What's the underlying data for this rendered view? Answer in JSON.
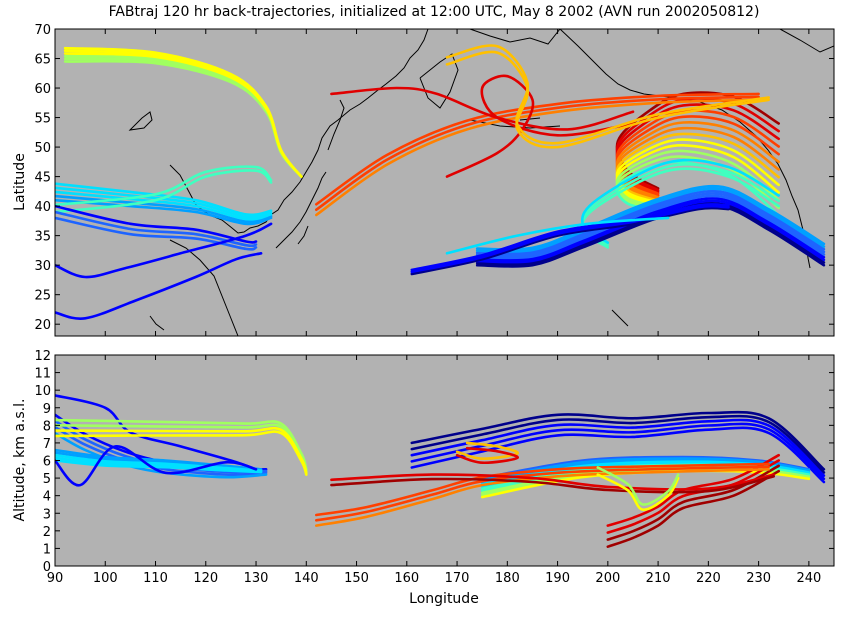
{
  "title": "FABtraj 120 hr back-trajectories, initialized at 12:00 UTC, May 8 2002 (AVN run 2002050812)",
  "colors": {
    "panel_bg": "#b2b2b2",
    "coast": "#000000",
    "traj_palette": [
      "#00008b",
      "#0000ff",
      "#1e64ff",
      "#00a0ff",
      "#00e0ff",
      "#40ffc0",
      "#a0ff60",
      "#ffff00",
      "#ffc000",
      "#ff8000",
      "#ff4000",
      "#e00000",
      "#a00000"
    ]
  },
  "chart_data": [
    {
      "type": "line",
      "name": "map",
      "xlim": [
        90,
        245
      ],
      "ylim": [
        18,
        70
      ],
      "ylabel": "Latitude",
      "yticks": [
        20,
        25,
        30,
        35,
        40,
        45,
        50,
        55,
        60,
        65,
        70
      ],
      "groups": [
        {
          "base": [
            [
              92,
              64.5
            ],
            [
              110,
              64.2
            ],
            [
              125,
              61
            ],
            [
              132,
              56
            ],
            [
              135,
              49
            ],
            [
              139,
              45
            ]
          ],
          "n": 6,
          "dy": [
            0.45,
            0.0
          ],
          "c0": 6,
          "c1": 7
        },
        {
          "base": [
            [
              90,
              41
            ],
            [
              105,
              40
            ],
            [
              118,
              39
            ],
            [
              128,
              37
            ],
            [
              133,
              38
            ]
          ],
          "n": 5,
          "dy": [
            0.7,
            0.3
          ],
          "c0": 3,
          "c1": 4
        },
        {
          "base": [
            [
              90,
              39
            ],
            [
              110,
              41
            ],
            [
              120,
              45
            ],
            [
              130,
              46
            ],
            [
              133,
              44
            ]
          ],
          "n": 2,
          "dy": [
            1.2,
            0.4
          ],
          "c0": 5,
          "c1": 5
        },
        {
          "base": [
            [
              90,
              40
            ],
            [
              105,
              37
            ],
            [
              118,
              36
            ],
            [
              128,
              34
            ],
            [
              130,
              34
            ]
          ],
          "n": 3,
          "dy": [
            -1.0,
            -0.5
          ],
          "c0": 1,
          "c1": 2
        },
        {
          "base": [
            [
              90,
              30
            ],
            [
              96,
              28
            ],
            [
              104,
              29.5
            ],
            [
              115,
              32
            ],
            [
              128,
              35
            ],
            [
              133,
              37
            ]
          ],
          "n": 1,
          "dy": [
            0,
            0
          ],
          "c0": 1,
          "c1": 1
        },
        {
          "base": [
            [
              90,
              22
            ],
            [
              96,
              21
            ],
            [
              106,
              24
            ],
            [
              118,
              28
            ],
            [
              126,
              31
            ],
            [
              131,
              32
            ]
          ],
          "n": 1,
          "dy": [
            0,
            0
          ],
          "c0": 1,
          "c1": 1
        },
        {
          "base": [
            [
              234,
              54
            ],
            [
              225,
              58.5
            ],
            [
              215,
              59
            ],
            [
              208,
              56
            ],
            [
              202,
              51
            ],
            [
              204,
              46
            ],
            [
              210,
              43
            ]
          ],
          "n": 13,
          "dy": [
            -1.3,
            -0.3
          ],
          "c0": 12,
          "c1": 5
        },
        {
          "base": [
            [
              234,
              40
            ],
            [
              224,
              45
            ],
            [
              212,
              46
            ],
            [
              198,
              40
            ],
            [
              195,
              36
            ],
            [
              200,
              33
            ]
          ],
          "n": 3,
          "dy": [
            0.9,
            0.4
          ],
          "c0": 5,
          "c1": 4
        },
        {
          "base": [
            [
              243,
              30
            ],
            [
              232,
              36
            ],
            [
              222,
              40
            ],
            [
              210,
              38
            ],
            [
              195,
              33
            ],
            [
              185,
              30
            ],
            [
              174,
              30
            ]
          ],
          "n": 9,
          "dy": [
            0.45,
            0.35
          ],
          "c0": 0,
          "c1": 3
        },
        {
          "base": [
            [
              161,
              28.5
            ],
            [
              175,
              31
            ],
            [
              190,
              35
            ],
            [
              205,
              37
            ],
            [
              218,
              39.5
            ],
            [
              224,
              39.5
            ]
          ],
          "n": 3,
          "dy": [
            0.35,
            0.3
          ],
          "c0": 0,
          "c1": 1
        },
        {
          "base": [
            [
              142,
              38.5
            ],
            [
              156,
              47
            ],
            [
              172,
              53
            ],
            [
              190,
              56
            ],
            [
              210,
              57.5
            ],
            [
              230,
              58
            ]
          ],
          "n": 3,
          "dy": [
            0.9,
            0.5
          ],
          "c0": 9,
          "c1": 10
        },
        {
          "base": [
            [
              145,
              59
            ],
            [
              158,
              60
            ],
            [
              166,
              59
            ],
            [
              178,
              55
            ],
            [
              192,
              53
            ],
            [
              205,
              56
            ]
          ],
          "n": 1,
          "dy": [
            0,
            0
          ],
          "c0": 11,
          "c1": 11
        },
        {
          "base": [
            [
              168,
              45
            ],
            [
              178,
              49
            ],
            [
              183,
              53
            ],
            [
              185,
              58
            ],
            [
              180,
              62
            ],
            [
              175,
              60
            ],
            [
              178,
              55
            ],
            [
              190,
              52
            ],
            [
              205,
              54
            ]
          ],
          "n": 1,
          "dy": [
            0,
            0
          ],
          "c0": 11,
          "c1": 11
        },
        {
          "base": [
            [
              168,
              64
            ],
            [
              178,
              66
            ],
            [
              184,
              60
            ],
            [
              182,
              53
            ],
            [
              190,
              50
            ],
            [
              210,
              55
            ],
            [
              232,
              58
            ]
          ],
          "n": 2,
          "dy": [
            1.2,
            0.4
          ],
          "c0": 8,
          "c1": 8
        },
        {
          "base": [
            [
              168,
              32
            ],
            [
              182,
              35
            ],
            [
              196,
              37
            ],
            [
              212,
              38
            ]
          ],
          "n": 1,
          "dy": [
            0,
            0
          ],
          "c0": 4,
          "c1": 4
        }
      ]
    },
    {
      "type": "line",
      "name": "altitude",
      "xlim": [
        90,
        245
      ],
      "ylim": [
        0,
        12
      ],
      "xlabel": "Longitude",
      "ylabel": "Altitude, km a.s.l.",
      "xticks": [
        90,
        100,
        110,
        120,
        130,
        140,
        150,
        160,
        170,
        180,
        190,
        200,
        210,
        220,
        230,
        240
      ],
      "yticks": [
        0,
        1,
        2,
        3,
        4,
        5,
        6,
        7,
        8,
        9,
        10,
        11,
        12
      ],
      "groups": [
        {
          "base": [
            [
              161,
              7.0
            ],
            [
              175,
              7.8
            ],
            [
              190,
              8.6
            ],
            [
              205,
              8.4
            ],
            [
              220,
              8.7
            ],
            [
              232,
              8.4
            ],
            [
              243,
              5.5
            ]
          ],
          "n": 5,
          "dy": [
            -0.35,
            -0.18
          ],
          "c0": 0,
          "c1": 1
        },
        {
          "base": [
            [
              175,
              5.0
            ],
            [
              195,
              6.0
            ],
            [
              215,
              6.2
            ],
            [
              230,
              6.0
            ],
            [
              240,
              5.5
            ]
          ],
          "n": 10,
          "dy": [
            -0.12,
            -0.06
          ],
          "c0": 2,
          "c1": 7
        },
        {
          "base": [
            [
              200,
              1.1
            ],
            [
              205,
              1.6
            ],
            [
              210,
              2.3
            ],
            [
              215,
              3.3
            ],
            [
              225,
              4.0
            ],
            [
              234,
              5.4
            ]
          ],
          "n": 4,
          "dy": [
            0.4,
            0.3
          ],
          "c0": 12,
          "c1": 11
        },
        {
          "base": [
            [
              142,
              2.3
            ],
            [
              152,
              2.8
            ],
            [
              165,
              3.8
            ],
            [
              175,
              4.6
            ],
            [
              190,
              5.1
            ],
            [
              205,
              5.3
            ],
            [
              232,
              5.5
            ]
          ],
          "n": 3,
          "dy": [
            0.3,
            0.15
          ],
          "c0": 9,
          "c1": 10
        },
        {
          "base": [
            [
              145,
              4.9
            ],
            [
              165,
              5.2
            ],
            [
              185,
              5.0
            ],
            [
              200,
              4.5
            ],
            [
              220,
              4.4
            ],
            [
              233,
              5.2
            ]
          ],
          "n": 2,
          "dy": [
            -0.3,
            -0.1
          ],
          "c0": 11,
          "c1": 12
        },
        {
          "base": [
            [
              90,
              9.7
            ],
            [
              100,
              9.0
            ],
            [
              105,
              7.6
            ],
            [
              115,
              6.8
            ],
            [
              125,
              6.0
            ],
            [
              130,
              5.5
            ]
          ],
          "n": 1,
          "dy": [
            0,
            0
          ],
          "c0": 1,
          "c1": 1
        },
        {
          "base": [
            [
              90,
              8.6
            ],
            [
              96,
              7.5
            ],
            [
              104,
              6.5
            ],
            [
              112,
              5.9
            ],
            [
              124,
              5.5
            ],
            [
              132,
              5.5
            ]
          ],
          "n": 4,
          "dy": [
            -0.35,
            -0.1
          ],
          "c0": 1,
          "c1": 3
        },
        {
          "base": [
            [
              90,
              8.3
            ],
            [
              110,
              8.2
            ],
            [
              128,
              8.1
            ],
            [
              135,
              8.1
            ],
            [
              139,
              6.4
            ],
            [
              140,
              5.5
            ]
          ],
          "n": 4,
          "dy": [
            -0.3,
            -0.1
          ],
          "c0": 6,
          "c1": 7
        },
        {
          "base": [
            [
              90,
              6.6
            ],
            [
              100,
              6.2
            ],
            [
              112,
              6.0
            ],
            [
              124,
              5.7
            ],
            [
              131,
              5.5
            ]
          ],
          "n": 5,
          "dy": [
            -0.15,
            -0.04
          ],
          "c0": 3,
          "c1": 4
        },
        {
          "base": [
            [
              90,
              6.0
            ],
            [
              95,
              4.6
            ],
            [
              102,
              6.8
            ],
            [
              112,
              5.3
            ],
            [
              124,
              5.9
            ],
            [
              130,
              5.5
            ]
          ],
          "n": 1,
          "dy": [
            0,
            0
          ],
          "c0": 1,
          "c1": 1
        },
        {
          "base": [
            [
              172,
              7.0
            ],
            [
              178,
              6.8
            ],
            [
              182,
              6.4
            ],
            [
              175,
              6.1
            ],
            [
              170,
              6.5
            ]
          ],
          "n": 2,
          "dy": [
            -0.3,
            -0.2
          ],
          "c0": 8,
          "c1": 11
        },
        {
          "base": [
            [
              198,
              5.2
            ],
            [
              204,
              4.3
            ],
            [
              207,
              3.2
            ],
            [
              212,
              4.0
            ],
            [
              214,
              5.0
            ]
          ],
          "n": 2,
          "dy": [
            0.4,
            0.2
          ],
          "c0": 7,
          "c1": 6
        }
      ]
    }
  ]
}
